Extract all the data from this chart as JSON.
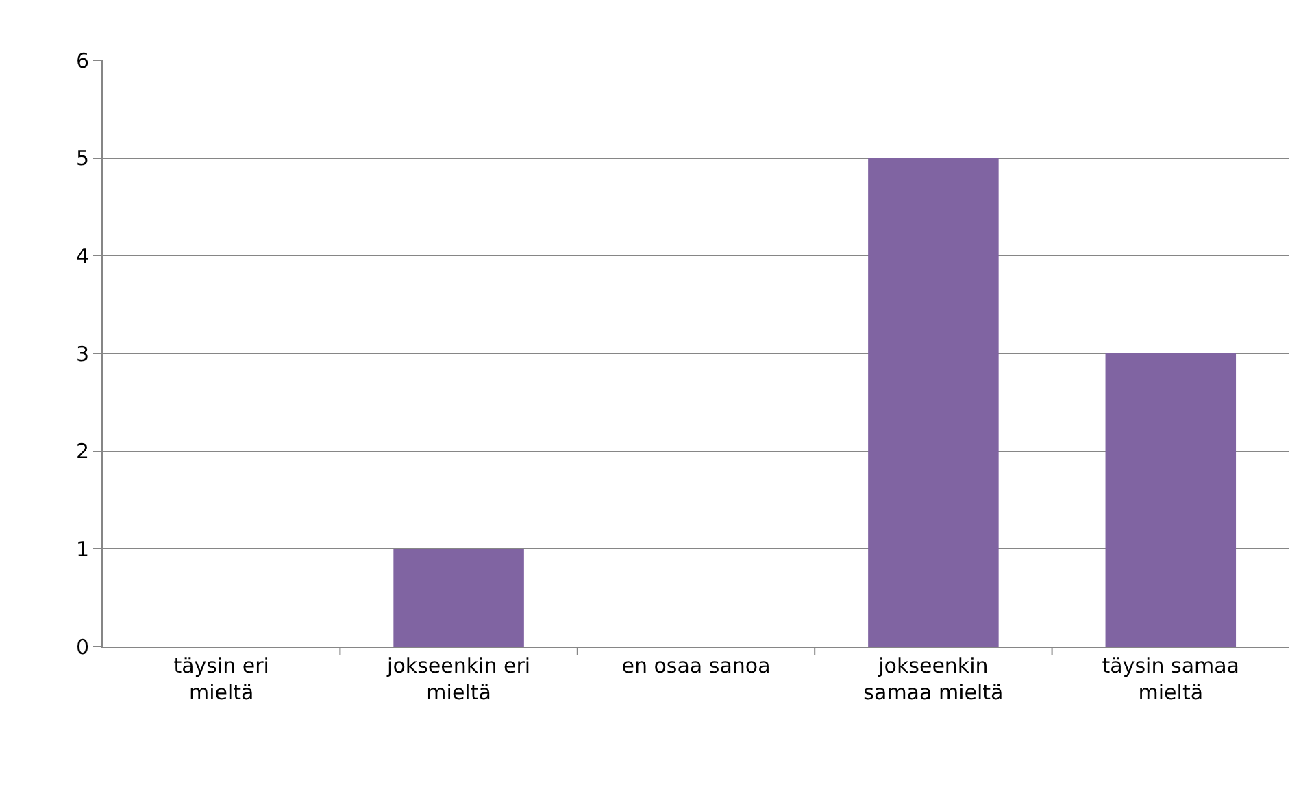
{
  "chart_data": {
    "type": "bar",
    "categories": [
      "täysin eri mieltä",
      "jokseenkin eri mieltä",
      "en osaa sanoa",
      "jokseenkin samaa mieltä",
      "täysin samaa mieltä"
    ],
    "values": [
      0,
      1,
      0,
      5,
      3
    ],
    "color": "#8064a2",
    "ylim": [
      0,
      6
    ],
    "yticks": [
      0,
      1,
      2,
      3,
      4,
      5,
      6
    ],
    "grid": "y",
    "legend": false
  }
}
